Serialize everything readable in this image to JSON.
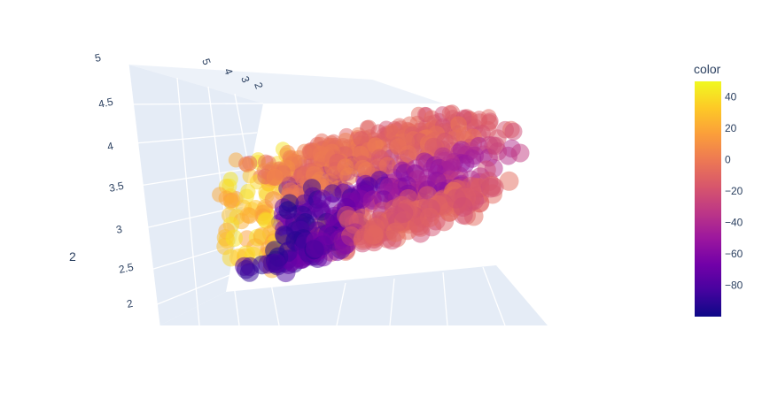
{
  "chart_data": {
    "type": "scatter3d",
    "title": "",
    "axes": {
      "x": {
        "title": "",
        "tick_labels": []
      },
      "y": {
        "title": "",
        "tick_labels": [
          "5",
          "4",
          "3",
          "2"
        ]
      },
      "z": {
        "title": "2",
        "tick_labels": [
          "5",
          "4.5",
          "4",
          "3.5",
          "3",
          "2.5",
          "2"
        ],
        "range": [
          2,
          5
        ]
      }
    },
    "colorbar": {
      "title": "color",
      "range": [
        -100,
        50
      ],
      "tick_labels": [
        "40",
        "20",
        "0",
        "−20",
        "−40",
        "−60",
        "−80"
      ],
      "colorscale": [
        "#0d0887",
        "#46039f",
        "#7201a8",
        "#9c179e",
        "#bd3786",
        "#d8576b",
        "#ed7953",
        "#fb9f3a",
        "#fdca26",
        "#f0f921"
      ]
    },
    "marker": {
      "opacity": 0.5
    },
    "point_cloud": {
      "shape": "hollow elongated tube (ring-like cross section) viewed obliquely",
      "count": 900,
      "color_trend": "low (dark violet, about -90) at the left core, mid (magenta/pink, about -30) on the right, high (orange-yellow, about 20 to 40) along the left rim"
    }
  }
}
